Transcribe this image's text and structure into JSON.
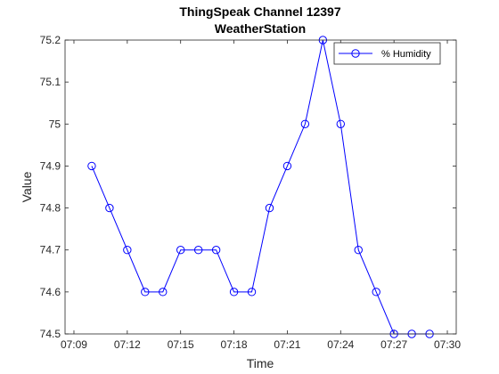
{
  "chart_data": {
    "type": "line",
    "title": "ThingSpeak Channel 12397",
    "subtitle": "WeatherStation",
    "xlabel": "Time",
    "ylabel": "Value",
    "x_ticks": [
      "07:09",
      "07:12",
      "07:15",
      "07:18",
      "07:21",
      "07:24",
      "07:27",
      "07:30"
    ],
    "y_ticks": [
      "74.5",
      "74.6",
      "74.7",
      "74.8",
      "74.9",
      "75",
      "75.1",
      "75.2"
    ],
    "xlim": [
      "07:08:30",
      "07:30:30"
    ],
    "ylim": [
      74.5,
      75.2
    ],
    "grid": false,
    "legend_position": "top-right",
    "series": [
      {
        "name": "% Humidity",
        "color": "#0000ff",
        "marker": "circle",
        "x": [
          "07:10",
          "07:11",
          "07:12",
          "07:13",
          "07:14",
          "07:15",
          "07:16",
          "07:17",
          "07:18",
          "07:19",
          "07:20",
          "07:21",
          "07:22",
          "07:23",
          "07:24",
          "07:25",
          "07:26",
          "07:27",
          "07:28",
          "07:29"
        ],
        "y": [
          74.9,
          74.8,
          74.7,
          74.6,
          74.6,
          74.7,
          74.7,
          74.7,
          74.6,
          74.6,
          74.8,
          74.9,
          75.0,
          75.2,
          75.0,
          74.7,
          74.6,
          74.5,
          74.5,
          74.5
        ]
      }
    ]
  }
}
